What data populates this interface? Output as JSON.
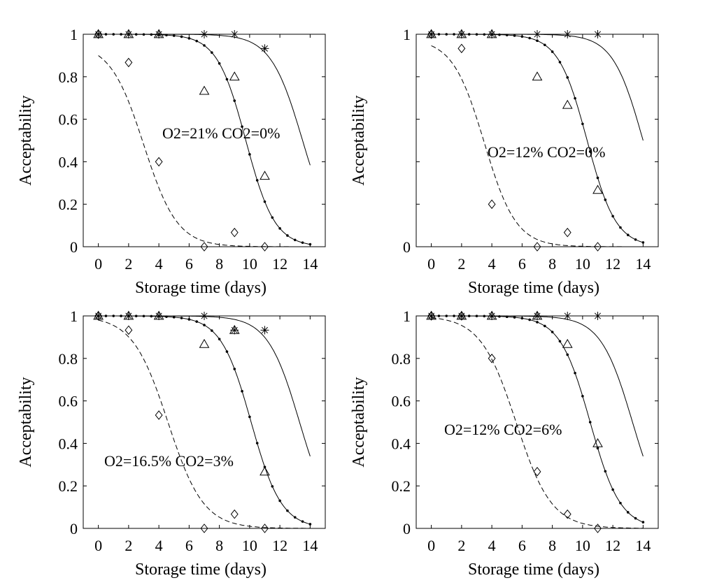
{
  "chart_data": [
    {
      "type": "line",
      "title": "",
      "annotation": "O2=21% CO2=0%",
      "xlabel": "Storage time (days)",
      "ylabel": "Acceptability",
      "xlim": [
        -1,
        15
      ],
      "ylim": [
        0,
        1
      ],
      "xticks": [
        "0",
        "2",
        "4",
        "6",
        "8",
        "10",
        "12",
        "14"
      ],
      "yticks": [
        "0",
        "0.2",
        "0.4",
        "0.6",
        "0.8",
        "1"
      ],
      "curves": [
        {
          "style": "dashed",
          "k": 0.9,
          "t50": 3.0,
          "a": 0.96,
          "range": [
            0,
            14
          ]
        },
        {
          "style": "dotted-line",
          "k": 1.05,
          "t50": 9.75,
          "a": 1.0,
          "range": [
            0,
            14
          ]
        },
        {
          "style": "solid",
          "k": 0.95,
          "t50": 13.5,
          "a": 1.0,
          "range": [
            0,
            14
          ]
        }
      ],
      "markers": {
        "diamond": [
          [
            0,
            1
          ],
          [
            2,
            0.867
          ],
          [
            4,
            0.4
          ],
          [
            7,
            0
          ],
          [
            9,
            0.067
          ],
          [
            11,
            0
          ]
        ],
        "triangle": [
          [
            0,
            1
          ],
          [
            2,
            1
          ],
          [
            4,
            1
          ],
          [
            7,
            0.733
          ],
          [
            9,
            0.8
          ],
          [
            11,
            0.333
          ]
        ],
        "star": [
          [
            0,
            1
          ],
          [
            2,
            1
          ],
          [
            4,
            1
          ],
          [
            7,
            1
          ],
          [
            9,
            1
          ],
          [
            11,
            0.933
          ]
        ]
      }
    },
    {
      "type": "line",
      "title": "",
      "annotation": "O2=12% CO2=0%",
      "xlabel": "Storage time (days)",
      "ylabel": "Acceptability",
      "xlim": [
        -1,
        15
      ],
      "ylim": [
        0,
        1
      ],
      "xticks": [
        "0",
        "2",
        "4",
        "6",
        "8",
        "10",
        "12",
        "14"
      ],
      "yticks": [
        "0",
        "1"
      ],
      "curves": [
        {
          "style": "dashed",
          "k": 0.95,
          "t50": 3.5,
          "a": 0.98,
          "range": [
            0,
            14
          ]
        },
        {
          "style": "dotted-line",
          "k": 1.05,
          "t50": 10.3,
          "a": 1.0,
          "range": [
            0,
            14
          ]
        },
        {
          "style": "solid",
          "k": 1.0,
          "t50": 14.0,
          "a": 1.0,
          "range": [
            0,
            14
          ]
        }
      ],
      "markers": {
        "diamond": [
          [
            0,
            1
          ],
          [
            2,
            0.933
          ],
          [
            4,
            0.2
          ],
          [
            7,
            0
          ],
          [
            9,
            0.067
          ],
          [
            11,
            0
          ]
        ],
        "triangle": [
          [
            0,
            1
          ],
          [
            2,
            1
          ],
          [
            4,
            1
          ],
          [
            7,
            0.8
          ],
          [
            9,
            0.667
          ],
          [
            11,
            0.267
          ]
        ],
        "star": [
          [
            0,
            1
          ],
          [
            2,
            1
          ],
          [
            4,
            1
          ],
          [
            7,
            1
          ],
          [
            9,
            1
          ],
          [
            11,
            1
          ]
        ]
      }
    },
    {
      "type": "line",
      "title": "",
      "annotation": "O2=16.5% CO2=3%",
      "xlabel": "Storage time (days)",
      "ylabel": "Acceptability",
      "xlim": [
        -1,
        15
      ],
      "ylim": [
        0,
        1
      ],
      "xticks": [
        "0",
        "2",
        "4",
        "6",
        "8",
        "10",
        "12",
        "14"
      ],
      "yticks": [
        "0",
        "0.2",
        "0.4",
        "0.6",
        "0.8",
        "1"
      ],
      "curves": [
        {
          "style": "dashed",
          "k": 0.85,
          "t50": 4.6,
          "a": 1.0,
          "range": [
            0,
            14
          ]
        },
        {
          "style": "dotted-line",
          "k": 1.0,
          "t50": 10.1,
          "a": 1.0,
          "range": [
            0,
            14
          ]
        },
        {
          "style": "solid",
          "k": 0.95,
          "t50": 13.3,
          "a": 1.0,
          "range": [
            0,
            14
          ]
        }
      ],
      "markers": {
        "diamond": [
          [
            0,
            1
          ],
          [
            2,
            0.933
          ],
          [
            4,
            0.533
          ],
          [
            7,
            0
          ],
          [
            9,
            0.067
          ],
          [
            11,
            0
          ]
        ],
        "triangle": [
          [
            0,
            1
          ],
          [
            2,
            1
          ],
          [
            4,
            1
          ],
          [
            7,
            0.867
          ],
          [
            9,
            0.933
          ],
          [
            11,
            0.267
          ]
        ],
        "star": [
          [
            0,
            1
          ],
          [
            2,
            1
          ],
          [
            4,
            1
          ],
          [
            7,
            1
          ],
          [
            9,
            0.933
          ],
          [
            11,
            0.933
          ]
        ]
      }
    },
    {
      "type": "line",
      "title": "",
      "annotation": "O2=12% CO2=6%",
      "xlabel": "Storage time (days)",
      "ylabel": "Acceptability",
      "xlim": [
        -1,
        15
      ],
      "ylim": [
        0,
        1
      ],
      "xticks": [
        "0",
        "2",
        "4",
        "6",
        "8",
        "10",
        "12",
        "14"
      ],
      "yticks": [
        "0",
        "0.2",
        "0.4",
        "0.6",
        "0.8",
        "1"
      ],
      "curves": [
        {
          "style": "dashed",
          "k": 0.85,
          "t50": 5.6,
          "a": 1.0,
          "range": [
            0,
            14
          ]
        },
        {
          "style": "dotted-line",
          "k": 1.0,
          "t50": 10.5,
          "a": 1.0,
          "range": [
            0,
            14
          ]
        },
        {
          "style": "solid",
          "k": 0.95,
          "t50": 13.3,
          "a": 1.0,
          "range": [
            0,
            14
          ]
        }
      ],
      "markers": {
        "diamond": [
          [
            0,
            1
          ],
          [
            2,
            1
          ],
          [
            4,
            0.8
          ],
          [
            7,
            0.267
          ],
          [
            9,
            0.067
          ],
          [
            11,
            0
          ]
        ],
        "triangle": [
          [
            0,
            1
          ],
          [
            2,
            1
          ],
          [
            4,
            1
          ],
          [
            7,
            1
          ],
          [
            9,
            0.867
          ],
          [
            11,
            0.4
          ]
        ],
        "star": [
          [
            0,
            1
          ],
          [
            2,
            1
          ],
          [
            4,
            1
          ],
          [
            7,
            1
          ],
          [
            9,
            1
          ],
          [
            11,
            1
          ]
        ]
      }
    }
  ]
}
